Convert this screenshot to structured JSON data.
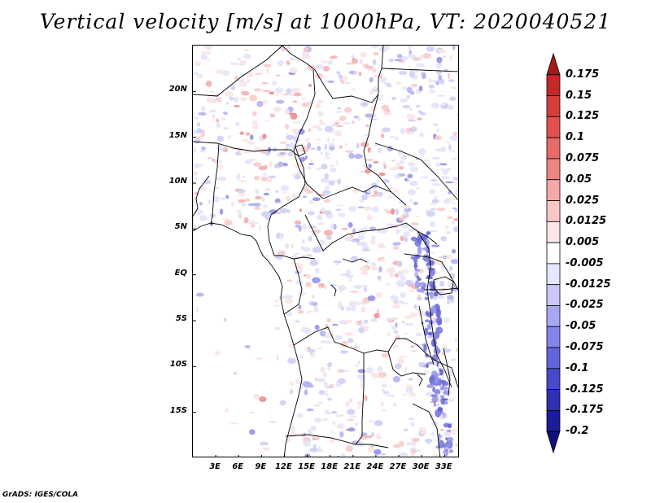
{
  "title": "Vertical velocity [m/s] at 1000hPa, VT: 2020040521",
  "credit": "GrADS: IGES/COLA",
  "map": {
    "region": "Central Africa",
    "variable": "Vertical velocity",
    "units": "m/s",
    "level": "1000hPa",
    "valid_time": "2020040521",
    "lon_range_deg": [
      0,
      35
    ],
    "lat_range_deg": [
      -20,
      25
    ],
    "lat_labels": [
      {
        "value": 20,
        "label": "20N"
      },
      {
        "value": 15,
        "label": "15N"
      },
      {
        "value": 10,
        "label": "10N"
      },
      {
        "value": 5,
        "label": "5N"
      },
      {
        "value": 0,
        "label": "EQ"
      },
      {
        "value": -5,
        "label": "5S"
      },
      {
        "value": -10,
        "label": "10S"
      },
      {
        "value": -15,
        "label": "15S"
      }
    ],
    "lon_labels": [
      {
        "value": 3,
        "label": "3E"
      },
      {
        "value": 6,
        "label": "6E"
      },
      {
        "value": 9,
        "label": "9E"
      },
      {
        "value": 12,
        "label": "12E"
      },
      {
        "value": 15,
        "label": "15E"
      },
      {
        "value": 18,
        "label": "18E"
      },
      {
        "value": 21,
        "label": "21E"
      },
      {
        "value": 24,
        "label": "24E"
      },
      {
        "value": 27,
        "label": "27E"
      },
      {
        "value": 30,
        "label": "30E"
      },
      {
        "value": 33,
        "label": "33E"
      }
    ]
  },
  "colorbar": {
    "labels": [
      "0.175",
      "0.15",
      "0.125",
      "0.1",
      "0.075",
      "0.05",
      "0.025",
      "0.0125",
      "0.005",
      "-0.005",
      "-0.0125",
      "-0.025",
      "-0.05",
      "-0.075",
      "-0.1",
      "-0.125",
      "-0.175",
      "-0.2"
    ],
    "colors": [
      "#a81818",
      "#c42828",
      "#d63c3c",
      "#e25050",
      "#e86a6a",
      "#ee8484",
      "#f4a8a8",
      "#f8c8c8",
      "#fde6e6",
      "#ffffff",
      "#e6e6fd",
      "#c8c8f8",
      "#a8a8f2",
      "#8484ea",
      "#6464dc",
      "#4848cc",
      "#3030b4",
      "#1c1c98",
      "#10107e"
    ]
  }
}
